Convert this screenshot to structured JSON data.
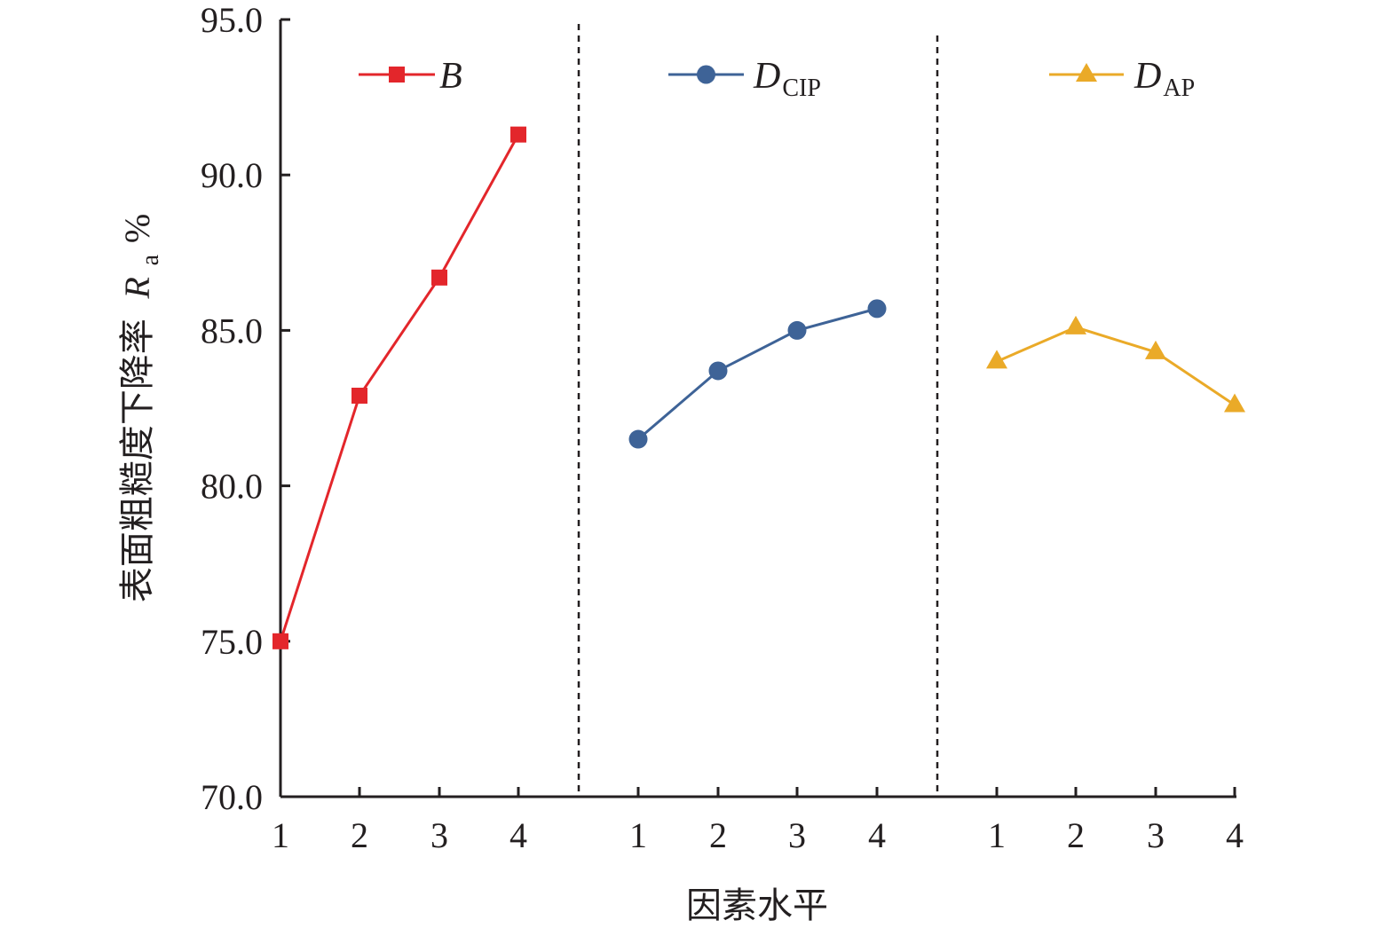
{
  "chart_data": {
    "type": "line",
    "ylabel": "表面粗糙度下降率",
    "ylabel_symbol": "R",
    "ylabel_symbol_sub": "a",
    "ylabel_unit": "%",
    "xlabel": "因素水平",
    "ylim": [
      70.0,
      95.0
    ],
    "yticks": [
      "70.0",
      "75.0",
      "80.0",
      "85.0",
      "90.0",
      "95.0"
    ],
    "grid": false,
    "panels_separated_by_dashed_lines": true,
    "series": [
      {
        "name": "B",
        "name_main": "B",
        "name_sub": "",
        "color": "#e3262b",
        "marker": "square",
        "x": [
          "1",
          "2",
          "3",
          "4"
        ],
        "values": [
          75.0,
          82.9,
          86.7,
          91.3
        ]
      },
      {
        "name": "DCIP",
        "name_main": "D",
        "name_sub": "CIP",
        "color": "#3e6397",
        "marker": "circle",
        "x": [
          "1",
          "2",
          "3",
          "4"
        ],
        "values": [
          81.5,
          83.7,
          85.0,
          85.7
        ]
      },
      {
        "name": "DAP",
        "name_main": "D",
        "name_sub": "AP",
        "color": "#eaaa28",
        "marker": "triangle",
        "x": [
          "1",
          "2",
          "3",
          "4"
        ],
        "values": [
          84.0,
          85.1,
          84.3,
          82.6
        ]
      }
    ]
  }
}
